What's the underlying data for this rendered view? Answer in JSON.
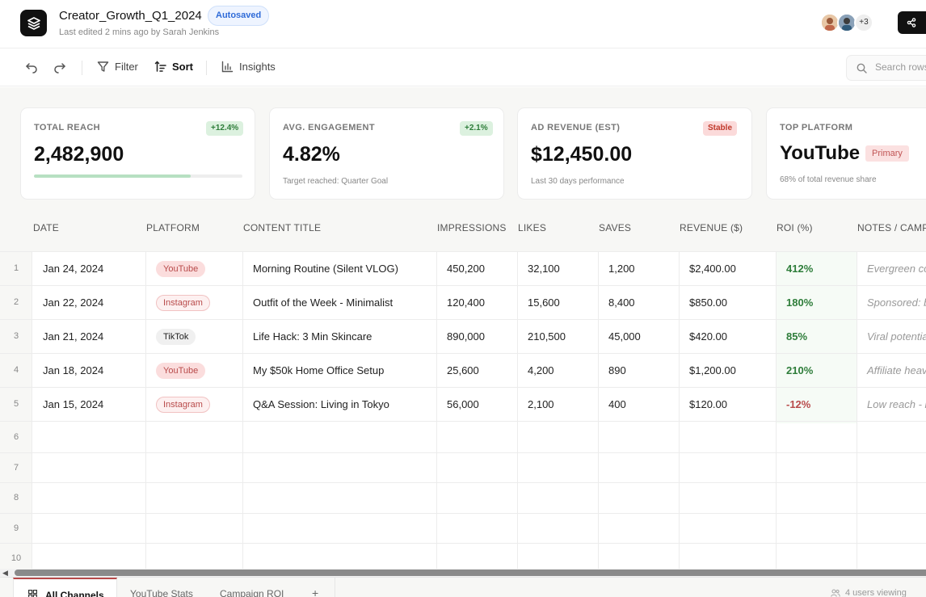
{
  "header": {
    "title": "Creator_Growth_Q1_2024",
    "autosave_badge": "Autosaved",
    "subtitle": "Last edited 2 mins ago by Sarah Jenkins",
    "collaborators_more": "+3"
  },
  "toolbar": {
    "filter_label": "Filter",
    "sort_label": "Sort",
    "insights_label": "Insights",
    "search_placeholder": "Search rows"
  },
  "stats": [
    {
      "label": "TOTAL REACH",
      "value": "2,482,900",
      "badge": "+12.4%",
      "badge_tone": "green",
      "progress": 0.75
    },
    {
      "label": "AVG. ENGAGEMENT",
      "value": "4.82%",
      "badge": "+2.1%",
      "badge_tone": "green",
      "caption": "Target reached: Quarter Goal"
    },
    {
      "label": "AD REVENUE (EST)",
      "value": "$12,450.00",
      "badge": "Stable",
      "badge_tone": "red",
      "caption": "Last 30 days performance"
    },
    {
      "label": "TOP PLATFORM",
      "value": "YouTube",
      "pill": "Primary",
      "caption": "68% of total revenue share"
    }
  ],
  "table": {
    "columns": [
      "DATE",
      "PLATFORM",
      "CONTENT TITLE",
      "IMPRESSIONS",
      "LIKES",
      "SAVES",
      "REVENUE ($)",
      "ROI (%)",
      "NOTES / CAMPAIGN"
    ],
    "rows": [
      {
        "num": "1",
        "date": "Jan 24, 2024",
        "platform": "YouTube",
        "title": "Morning Routine (Silent VLOG)",
        "impressions": "450,200",
        "likes": "32,100",
        "saves": "1,200",
        "revenue": "$2,400.00",
        "roi": "412%",
        "notes": "Evergreen content"
      },
      {
        "num": "2",
        "date": "Jan 22, 2024",
        "platform": "Instagram",
        "title": "Outfit of the Week - Minimalist",
        "impressions": "120,400",
        "likes": "15,600",
        "saves": "8,400",
        "revenue": "$850.00",
        "roi": "180%",
        "notes": "Sponsored: brand"
      },
      {
        "num": "3",
        "date": "Jan 21, 2024",
        "platform": "TikTok",
        "title": "Life Hack: 3 Min Skincare",
        "impressions": "890,000",
        "likes": "210,500",
        "saves": "45,000",
        "revenue": "$420.00",
        "roi": "85%",
        "notes": "Viral potential"
      },
      {
        "num": "4",
        "date": "Jan 18, 2024",
        "platform": "YouTube",
        "title": "My $50k Home Office Setup",
        "impressions": "25,600",
        "likes": "4,200",
        "saves": "890",
        "revenue": "$1,200.00",
        "roi": "210%",
        "notes": "Affiliate heavy"
      },
      {
        "num": "5",
        "date": "Jan 15, 2024",
        "platform": "Instagram",
        "title": "Q&A Session: Living in Tokyo",
        "impressions": "56,000",
        "likes": "2,100",
        "saves": "400",
        "revenue": "$120.00",
        "roi": "-12%",
        "notes": "Low reach - retry"
      }
    ],
    "empty_rows": [
      "6",
      "7",
      "8",
      "9",
      "10"
    ]
  },
  "tabs": {
    "items": [
      "All Channels",
      "YouTube Stats",
      "Campaign ROI"
    ],
    "add_label": "+",
    "viewing": "4 users viewing"
  },
  "colors": {
    "accent": "#b84a4a",
    "positive": "#2e7d3a",
    "brand_dark": "#111111"
  }
}
